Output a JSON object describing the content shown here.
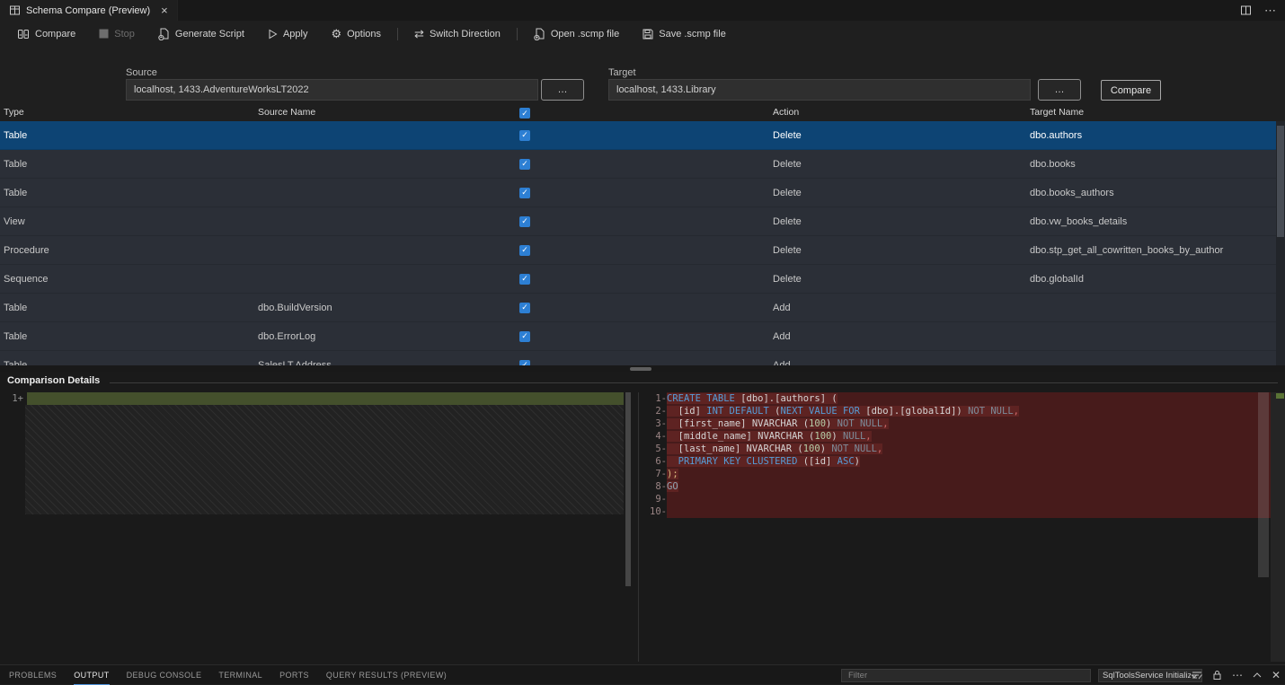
{
  "tab": {
    "title": "Schema Compare (Preview)",
    "close_label": "×"
  },
  "window_actions": {
    "split_editor": "split-editor",
    "more": "⋯"
  },
  "toolbar": {
    "items": [
      {
        "id": "compare",
        "label": "Compare",
        "icon": "compare",
        "disabled": false
      },
      {
        "id": "stop",
        "label": "Stop",
        "icon": "stop",
        "disabled": true
      },
      {
        "id": "generate-script",
        "label": "Generate Script",
        "icon": "generate-script",
        "disabled": false
      },
      {
        "id": "apply",
        "label": "Apply",
        "icon": "apply",
        "disabled": false
      },
      {
        "id": "options",
        "label": "Options",
        "icon": "options",
        "disabled": false
      },
      {
        "id": "switch-direction",
        "label": "Switch Direction",
        "icon": "switch-direction",
        "disabled": false,
        "separator_before": true
      },
      {
        "id": "open-scmp",
        "label": "Open .scmp file",
        "icon": "open-file",
        "disabled": false,
        "separator_before": true
      },
      {
        "id": "save-scmp",
        "label": "Save .scmp file",
        "icon": "save-file",
        "disabled": false
      }
    ]
  },
  "source": {
    "label": "Source",
    "value": "localhost, 1433.AdventureWorksLT2022",
    "browse": "…"
  },
  "target": {
    "label": "Target",
    "value": "localhost, 1433.Library",
    "browse": "…",
    "compare_button": "Compare"
  },
  "grid": {
    "columns": {
      "type": "Type",
      "source_name": "Source Name",
      "action": "Action",
      "target_name": "Target Name"
    },
    "header_checkbox_checked": true,
    "rows": [
      {
        "type": "Table",
        "source": "",
        "checked": true,
        "action": "Delete",
        "target": "dbo.authors",
        "selected": true
      },
      {
        "type": "Table",
        "source": "",
        "checked": true,
        "action": "Delete",
        "target": "dbo.books",
        "selected": false
      },
      {
        "type": "Table",
        "source": "",
        "checked": true,
        "action": "Delete",
        "target": "dbo.books_authors",
        "selected": false
      },
      {
        "type": "View",
        "source": "",
        "checked": true,
        "action": "Delete",
        "target": "dbo.vw_books_details",
        "selected": false
      },
      {
        "type": "Procedure",
        "source": "",
        "checked": true,
        "action": "Delete",
        "target": "dbo.stp_get_all_cowritten_books_by_author",
        "selected": false
      },
      {
        "type": "Sequence",
        "source": "",
        "checked": true,
        "action": "Delete",
        "target": "dbo.globalId",
        "selected": false
      },
      {
        "type": "Table",
        "source": "dbo.BuildVersion",
        "checked": true,
        "action": "Add",
        "target": "",
        "selected": false
      },
      {
        "type": "Table",
        "source": "dbo.ErrorLog",
        "checked": true,
        "action": "Add",
        "target": "",
        "selected": false
      },
      {
        "type": "Table",
        "source": "SalesLT.Address",
        "checked": true,
        "action": "Add",
        "target": "",
        "selected": false
      }
    ]
  },
  "details": {
    "title": "Comparison Details",
    "left": {
      "lines": [
        {
          "n": "1",
          "sign": "+"
        }
      ]
    },
    "right": {
      "lines": [
        {
          "n": "1",
          "sign": "-",
          "seg": [
            {
              "t": "CREATE TABLE ",
              "c": "kw"
            },
            {
              "t": "[dbo].[authors] (",
              "c": "id"
            }
          ]
        },
        {
          "n": "2",
          "sign": "-",
          "seg": [
            {
              "t": "  [id] ",
              "c": "id"
            },
            {
              "t": "INT DEFAULT ",
              "c": "kw"
            },
            {
              "t": "(",
              "c": "id"
            },
            {
              "t": "NEXT VALUE FOR ",
              "c": "kw"
            },
            {
              "t": "[dbo].[globalId]) ",
              "c": "id"
            },
            {
              "t": "NOT NULL",
              "c": "dim"
            },
            {
              "t": ",",
              "c": "comma"
            }
          ]
        },
        {
          "n": "3",
          "sign": "-",
          "seg": [
            {
              "t": "  [first_name] NVARCHAR (",
              "c": "id"
            },
            {
              "t": "100",
              "c": "num"
            },
            {
              "t": ") ",
              "c": "id"
            },
            {
              "t": "NOT NULL",
              "c": "dim"
            },
            {
              "t": ",",
              "c": "comma"
            }
          ]
        },
        {
          "n": "4",
          "sign": "-",
          "seg": [
            {
              "t": "  [middle_name] NVARCHAR (",
              "c": "id"
            },
            {
              "t": "100",
              "c": "num"
            },
            {
              "t": ") ",
              "c": "id"
            },
            {
              "t": "NULL",
              "c": "dim"
            },
            {
              "t": ",",
              "c": "comma"
            }
          ]
        },
        {
          "n": "5",
          "sign": "-",
          "seg": [
            {
              "t": "  [last_name] NVARCHAR (",
              "c": "id"
            },
            {
              "t": "100",
              "c": "num"
            },
            {
              "t": ") ",
              "c": "id"
            },
            {
              "t": "NOT NULL",
              "c": "dim"
            },
            {
              "t": ",",
              "c": "comma"
            }
          ]
        },
        {
          "n": "6",
          "sign": "-",
          "seg": [
            {
              "t": "  ",
              "c": "id"
            },
            {
              "t": "PRIMARY KEY CLUSTERED ",
              "c": "kw"
            },
            {
              "t": "([id] ",
              "c": "id"
            },
            {
              "t": "ASC",
              "c": "kw"
            },
            {
              "t": ")",
              "c": "id"
            }
          ]
        },
        {
          "n": "7",
          "sign": "-",
          "seg": [
            {
              "t": ");",
              "c": "gold"
            }
          ]
        },
        {
          "n": "8",
          "sign": "-",
          "seg": [
            {
              "t": "GO",
              "c": "go"
            }
          ]
        },
        {
          "n": "9",
          "sign": "-",
          "seg": []
        },
        {
          "n": "10",
          "sign": "-",
          "seg": []
        }
      ]
    }
  },
  "panel": {
    "tabs": [
      "PROBLEMS",
      "OUTPUT",
      "DEBUG CONSOLE",
      "TERMINAL",
      "PORTS",
      "QUERY RESULTS (PREVIEW)"
    ],
    "active_tab": "OUTPUT",
    "filter_placeholder": "Filter",
    "dropdown_value": "SqlToolsService Initializ"
  },
  "colors": {
    "accent_checkbox": "#2d7fd3",
    "row_selection": "#0d4474",
    "diff_removed_line": "#471b1b",
    "diff_removed_highlight": "#5e2322",
    "diff_added_line": "#44502c",
    "keyword": "#569cd6"
  }
}
